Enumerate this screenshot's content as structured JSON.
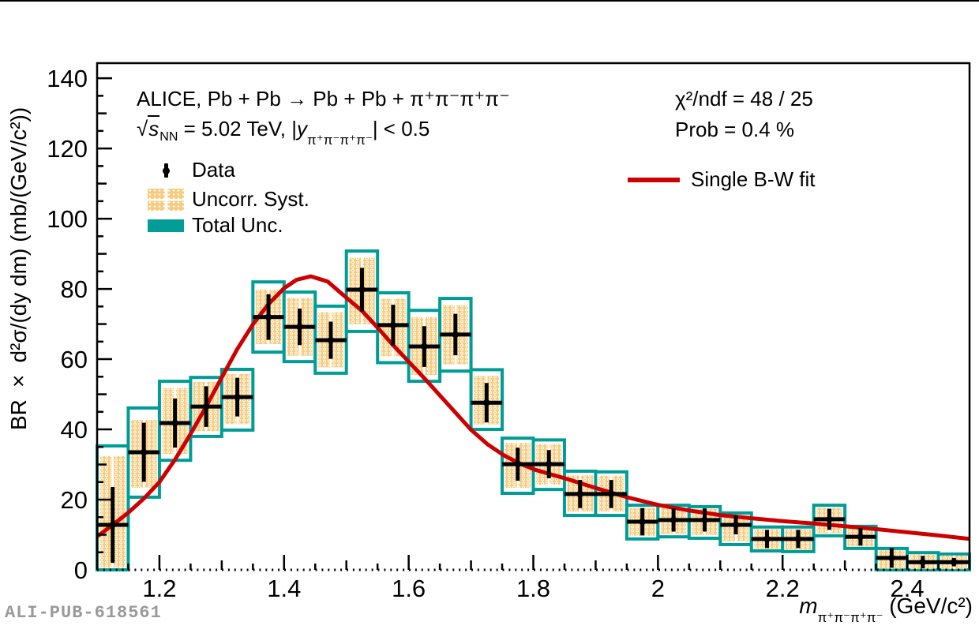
{
  "watermark": "ALI-PUB-618561",
  "annotations": {
    "line1": "ALICE, Pb + Pb → Pb + Pb + π⁺π⁻π⁺π⁻",
    "line2_sqrt": "√",
    "line2_s": "s",
    "line2_snn": "NN",
    "line2_mid": " = 5.02 TeV, |",
    "line2_y": "y",
    "line2_ysub": "π⁺π⁻π⁺π⁻",
    "line2_end": "| < 0.5",
    "chi2": "χ²/ndf = 48 / 25",
    "prob": "Prob = 0.4 %"
  },
  "legend": {
    "data_label": "Data",
    "syst_label": "Uncorr. Syst.",
    "total_label": "Total Unc.",
    "fit_label": "Single B-W fit"
  },
  "axes": {
    "x_title_m": "m",
    "x_title_sub": "π⁺π⁻π⁺π⁻",
    "x_title_unit": " (GeV/c²)",
    "y_title": "BR × d²σ/(dy dm)  (mb/(GeV/c²))",
    "x_tick_labels": [
      "1.2",
      "1.4",
      "1.6",
      "1.8",
      "2",
      "2.2",
      "2.4"
    ],
    "x_tick_values": [
      1.2,
      1.4,
      1.6,
      1.8,
      2.0,
      2.2,
      2.4
    ],
    "y_tick_labels": [
      "0",
      "20",
      "40",
      "60",
      "80",
      "100",
      "120",
      "140"
    ],
    "y_tick_values": [
      0,
      20,
      40,
      60,
      80,
      100,
      120,
      140
    ]
  },
  "colors": {
    "total_unc": "#009C96",
    "uncorr_syst": "#F7CC80",
    "fit_line": "#CC0000",
    "data": "#000000",
    "frame": "#000000",
    "watermark": "#9A9A9A"
  },
  "chart_data": {
    "type": "scatter",
    "title": "",
    "xlabel": "m(π+π-π+π-) (GeV/c²)",
    "ylabel": "BR × d²σ/(dy dm) (mb/(GeV/c²))",
    "xlim": [
      1.1,
      2.5
    ],
    "ylim": [
      0,
      144.3
    ],
    "bin_width": 0.05,
    "grid": false,
    "legend_position": "top-left",
    "fit_stats": {
      "chi2": 48,
      "ndf": 25,
      "prob_percent": 0.4
    },
    "series": [
      {
        "name": "Data",
        "type": "errorbar",
        "points": [
          {
            "m": 1.125,
            "y": 12.8,
            "stat": 10.8,
            "tot": [
              0,
              35.3
            ],
            "syst": [
              0.6,
              32.4
            ]
          },
          {
            "m": 1.175,
            "y": 33.5,
            "stat": 8.4,
            "tot": [
              20.7,
              46.1
            ],
            "syst": [
              23.4,
              42.7
            ]
          },
          {
            "m": 1.225,
            "y": 41.8,
            "stat": 7.0,
            "tot": [
              31.2,
              53.7
            ],
            "syst": [
              33.0,
              51.8
            ]
          },
          {
            "m": 1.275,
            "y": 46.5,
            "stat": 5.8,
            "tot": [
              38.0,
              54.8
            ],
            "syst": [
              39.5,
              53.5
            ]
          },
          {
            "m": 1.325,
            "y": 49.2,
            "stat": 5.5,
            "tot": [
              39.8,
              57.1
            ],
            "syst": [
              41.5,
              55.8
            ]
          },
          {
            "m": 1.375,
            "y": 72.0,
            "stat": 6.5,
            "tot": [
              62.0,
              82.0
            ],
            "syst": [
              64.3,
              79.8
            ]
          },
          {
            "m": 1.425,
            "y": 69.2,
            "stat": 5.2,
            "tot": [
              59.3,
              79.1
            ],
            "syst": [
              61.0,
              77.4
            ]
          },
          {
            "m": 1.475,
            "y": 65.4,
            "stat": 5.3,
            "tot": [
              56.0,
              75.1
            ],
            "syst": [
              57.7,
              73.4
            ]
          },
          {
            "m": 1.525,
            "y": 79.8,
            "stat": 6.2,
            "tot": [
              67.9,
              90.8
            ],
            "syst": [
              70.0,
              88.9
            ]
          },
          {
            "m": 1.575,
            "y": 69.7,
            "stat": 5.8,
            "tot": [
              59.0,
              78.9
            ],
            "syst": [
              60.8,
              77.2
            ]
          },
          {
            "m": 1.625,
            "y": 63.6,
            "stat": 5.8,
            "tot": [
              53.7,
              73.9
            ],
            "syst": [
              55.5,
              72.0
            ]
          },
          {
            "m": 1.675,
            "y": 67.0,
            "stat": 5.9,
            "tot": [
              56.6,
              77.3
            ],
            "syst": [
              58.5,
              75.4
            ]
          },
          {
            "m": 1.725,
            "y": 47.6,
            "stat": 5.6,
            "tot": [
              40.0,
              57.0
            ],
            "syst": [
              41.4,
              55.3
            ]
          },
          {
            "m": 1.775,
            "y": 30.1,
            "stat": 4.7,
            "tot": [
              21.8,
              37.5
            ],
            "syst": [
              23.3,
              36.2
            ]
          },
          {
            "m": 1.825,
            "y": 30.1,
            "stat": 4.0,
            "tot": [
              22.9,
              37.0
            ],
            "syst": [
              24.2,
              35.8
            ]
          },
          {
            "m": 1.875,
            "y": 21.6,
            "stat": 4.0,
            "tot": [
              15.5,
              28.1
            ],
            "syst": [
              16.6,
              26.9
            ]
          },
          {
            "m": 1.925,
            "y": 21.6,
            "stat": 4.0,
            "tot": [
              15.5,
              27.9
            ],
            "syst": [
              16.6,
              26.8
            ]
          },
          {
            "m": 1.975,
            "y": 13.7,
            "stat": 3.9,
            "tot": [
              8.8,
              18.4
            ],
            "syst": [
              9.7,
              17.6
            ]
          },
          {
            "m": 2.025,
            "y": 14.2,
            "stat": 3.3,
            "tot": [
              9.4,
              18.4
            ],
            "syst": [
              10.3,
              17.7
            ]
          },
          {
            "m": 2.075,
            "y": 14.2,
            "stat": 3.3,
            "tot": [
              9.0,
              18.0
            ],
            "syst": [
              9.9,
              17.3
            ]
          },
          {
            "m": 2.125,
            "y": 12.8,
            "stat": 2.7,
            "tot": [
              7.2,
              16.2
            ],
            "syst": [
              8.2,
              15.6
            ]
          },
          {
            "m": 2.175,
            "y": 8.8,
            "stat": 2.6,
            "tot": [
              5.4,
              12.2
            ],
            "syst": [
              6.0,
              11.6
            ]
          },
          {
            "m": 2.225,
            "y": 8.8,
            "stat": 2.6,
            "tot": [
              5.2,
              12.2
            ],
            "syst": [
              5.8,
              11.6
            ]
          },
          {
            "m": 2.275,
            "y": 14.4,
            "stat": 3.0,
            "tot": [
              9.7,
              18.4
            ],
            "syst": [
              10.5,
              17.7
            ]
          },
          {
            "m": 2.325,
            "y": 9.4,
            "stat": 2.5,
            "tot": [
              6.1,
              12.4
            ],
            "syst": [
              6.7,
              11.9
            ]
          },
          {
            "m": 2.375,
            "y": 3.4,
            "stat": 2.8,
            "tot": [
              0,
              6.1
            ],
            "syst": [
              0.3,
              5.6
            ]
          },
          {
            "m": 2.425,
            "y": 2.2,
            "stat": 1.8,
            "tot": [
              0,
              4.9
            ],
            "syst": [
              0.2,
              4.4
            ]
          },
          {
            "m": 2.475,
            "y": 2.2,
            "stat": 1.2,
            "tot": [
              0,
              4.5
            ],
            "syst": [
              0.2,
              4.1
            ]
          }
        ]
      },
      {
        "name": "Single B-W fit",
        "type": "line",
        "points": [
          [
            1.1,
            9.5
          ],
          [
            1.125,
            12.8
          ],
          [
            1.15,
            16.3
          ],
          [
            1.175,
            20.3
          ],
          [
            1.2,
            25.0
          ],
          [
            1.225,
            31.4
          ],
          [
            1.25,
            38.7
          ],
          [
            1.275,
            46.5
          ],
          [
            1.3,
            54.8
          ],
          [
            1.325,
            62.9
          ],
          [
            1.35,
            69.9
          ],
          [
            1.375,
            75.7
          ],
          [
            1.4,
            80.2
          ],
          [
            1.42,
            82.6
          ],
          [
            1.443,
            83.6
          ],
          [
            1.47,
            82.1
          ],
          [
            1.5,
            77.5
          ],
          [
            1.525,
            73.8
          ],
          [
            1.55,
            69.0
          ],
          [
            1.575,
            64.0
          ],
          [
            1.6,
            59.3
          ],
          [
            1.625,
            54.6
          ],
          [
            1.65,
            49.7
          ],
          [
            1.675,
            44.8
          ],
          [
            1.7,
            39.9
          ],
          [
            1.727,
            35.7
          ],
          [
            1.753,
            32.6
          ],
          [
            1.778,
            30.3
          ],
          [
            1.803,
            28.5
          ],
          [
            1.828,
            27.2
          ],
          [
            1.85,
            26.1
          ],
          [
            1.9,
            23.3
          ],
          [
            1.95,
            20.7
          ],
          [
            2.0,
            18.5
          ],
          [
            2.05,
            16.9
          ],
          [
            2.1,
            15.6
          ],
          [
            2.15,
            14.7
          ],
          [
            2.2,
            13.9
          ],
          [
            2.25,
            13.2
          ],
          [
            2.3,
            12.4
          ],
          [
            2.35,
            11.6
          ],
          [
            2.4,
            10.7
          ],
          [
            2.45,
            9.8
          ],
          [
            2.5,
            8.8
          ]
        ]
      }
    ]
  }
}
